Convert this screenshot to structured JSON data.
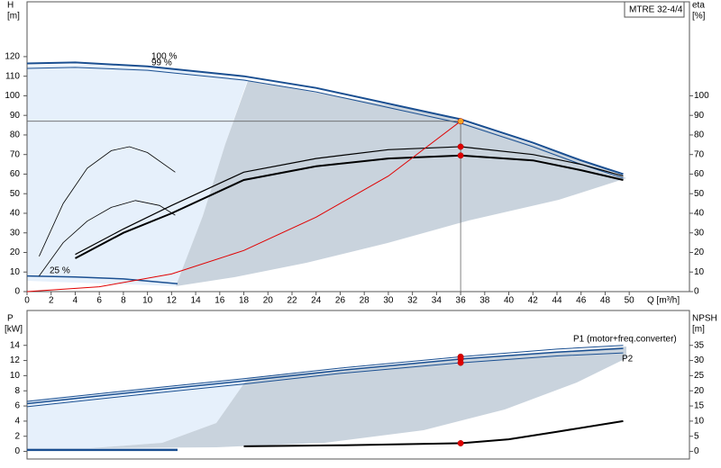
{
  "chart_data": [
    {
      "type": "line",
      "model": "MTRE 32-4/4",
      "ylabel": "H",
      "yunit": "[m]",
      "y2label": "eta",
      "y2unit": "[%]",
      "xlabel": "Q [m³/h]",
      "xlim": [
        0,
        55
      ],
      "xticks": [
        0,
        2,
        4,
        6,
        8,
        10,
        12,
        14,
        16,
        18,
        20,
        22,
        24,
        26,
        28,
        30,
        32,
        34,
        36,
        38,
        40,
        42,
        44,
        46,
        48,
        50
      ],
      "ylim": [
        0,
        148
      ],
      "yticks": [
        0,
        10,
        20,
        30,
        40,
        50,
        60,
        70,
        80,
        90,
        100,
        110,
        120
      ],
      "y2lim": [
        0,
        148
      ],
      "y2ticks": [
        0,
        10,
        20,
        30,
        40,
        50,
        60,
        70,
        80,
        90,
        100
      ],
      "series": [
        {
          "color": "#1a4f91",
          "width": 2,
          "x": [
            0,
            4,
            10,
            18,
            24,
            30,
            36,
            42,
            46,
            49.5
          ],
          "values": [
            116.5,
            117,
            115,
            110,
            104,
            96,
            88,
            76,
            67,
            60
          ]
        },
        {
          "color": "#1a4f91",
          "width": 1,
          "x": [
            0,
            4,
            10,
            18,
            24,
            30,
            36,
            42,
            46,
            49.5
          ],
          "values": [
            114,
            114.5,
            113,
            108,
            102,
            94,
            86,
            74,
            65,
            58
          ]
        },
        {
          "color": "#1a4f91",
          "width": 1.5,
          "x": [
            0,
            4,
            8,
            12.5
          ],
          "values": [
            8,
            7.5,
            6.5,
            4
          ]
        },
        {
          "color": "#000000",
          "width": 1.2,
          "axis": "y2",
          "x": [
            4,
            8,
            12,
            18,
            24,
            30,
            36,
            42,
            46,
            49.5
          ],
          "values": [
            19,
            32,
            44,
            61,
            68,
            72.5,
            74,
            70,
            65,
            59
          ]
        },
        {
          "color": "#000000",
          "width": 2,
          "axis": "y2",
          "x": [
            4,
            8,
            12,
            18,
            24,
            30,
            36,
            42,
            46,
            49.5
          ],
          "values": [
            17,
            30,
            40,
            57,
            64,
            68,
            69.5,
            67,
            62,
            57
          ]
        },
        {
          "color": "#000000",
          "width": 0.8,
          "axis": "y2",
          "x": [
            1,
            3,
            5,
            7,
            8.5,
            10,
            12.3
          ],
          "values": [
            18,
            45,
            63,
            72,
            74,
            71,
            61
          ]
        },
        {
          "color": "#000000",
          "width": 0.8,
          "axis": "y2",
          "x": [
            1,
            3,
            5,
            7,
            9,
            11,
            12.3
          ],
          "values": [
            8,
            25,
            36,
            43,
            46.5,
            44,
            39
          ]
        },
        {
          "color": "#e00000",
          "width": 1,
          "x": [
            0,
            6,
            12,
            18,
            24,
            30,
            36
          ],
          "values": [
            0,
            2.5,
            9,
            21,
            38,
            59,
            87
          ]
        },
        {
          "color": "#666666",
          "width": 0.8,
          "x": [
            0,
            36
          ],
          "values": [
            87,
            87
          ]
        },
        {
          "color": "#666666",
          "width": 0.8,
          "x": [
            36,
            36
          ],
          "values": [
            0,
            87
          ]
        }
      ],
      "points": [
        {
          "x": 36,
          "y": 87,
          "color": "#f5a623"
        },
        {
          "x": 36,
          "y": 74,
          "color": "#e00000",
          "axis": "y2"
        },
        {
          "x": 36,
          "y": 69.5,
          "color": "#e00000",
          "axis": "y2"
        }
      ],
      "annotations": [
        {
          "text": "100 %"
        },
        {
          "text": "99 %"
        },
        {
          "text": "25 %"
        }
      ]
    },
    {
      "type": "line",
      "ylabel": "P",
      "yunit": "[kW]",
      "y2label": "NPSH",
      "y2unit": "[m]",
      "xlim": [
        0,
        55
      ],
      "ylim": [
        -1,
        18.6
      ],
      "yticks": [
        0,
        2,
        4,
        6,
        8,
        10,
        12,
        14
      ],
      "y2lim": [
        -2.5,
        46.5
      ],
      "y2ticks": [
        0,
        5,
        10,
        15,
        20,
        25,
        30,
        35
      ],
      "series": [
        {
          "color": "#1a4f91",
          "width": 1,
          "x": [
            0,
            10,
            18,
            26,
            36,
            44,
            49.5
          ],
          "values": [
            6.6,
            8.3,
            9.6,
            11,
            12.5,
            13.5,
            14
          ]
        },
        {
          "color": "#1a4f91",
          "width": 1.5,
          "x": [
            0,
            10,
            18,
            26,
            36,
            44,
            49.5
          ],
          "values": [
            6.3,
            8,
            9.3,
            10.7,
            12.2,
            13.1,
            13.6
          ]
        },
        {
          "color": "#1a4f91",
          "width": 1,
          "x": [
            0,
            10,
            18,
            26,
            36,
            44,
            49.5
          ],
          "values": [
            5.9,
            7.6,
            8.9,
            10.3,
            11.7,
            12.6,
            13
          ]
        },
        {
          "color": "#000000",
          "width": 2,
          "axis": "y2",
          "x": [
            18,
            26,
            36,
            40,
            44,
            49.5
          ],
          "values": [
            1.7,
            2,
            2.7,
            4,
            6.5,
            10
          ]
        },
        {
          "color": "#1a4f91",
          "width": 2.5,
          "axis": "y2",
          "x": [
            0,
            12.5
          ],
          "values": [
            0.5,
            0.5
          ]
        }
      ],
      "points": [
        {
          "x": 36,
          "y": 12.5,
          "color": "#e00000"
        },
        {
          "x": 36,
          "y": 12.2,
          "color": "#e00000"
        },
        {
          "x": 36,
          "y": 11.7,
          "color": "#e00000"
        },
        {
          "x": 36,
          "y": 2.7,
          "color": "#e00000",
          "axis": "y2"
        }
      ],
      "annotations": [
        {
          "text": "P1 (motor+freq.converter)"
        },
        {
          "text": "P2"
        }
      ]
    }
  ]
}
